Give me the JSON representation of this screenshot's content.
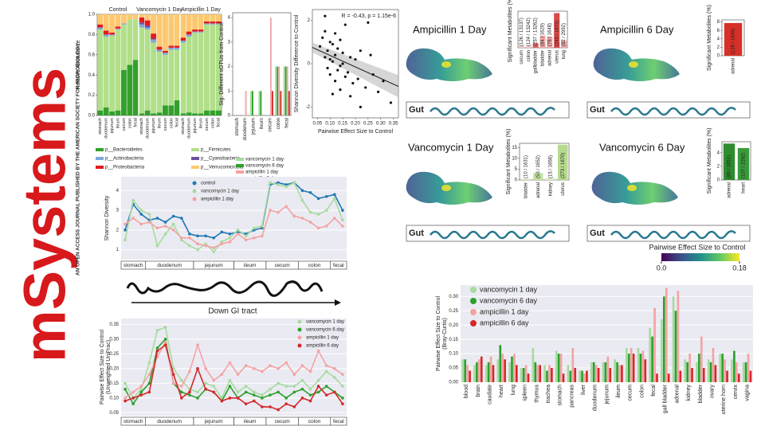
{
  "logo": {
    "title": "mSystems",
    "subtitle": "AN OPEN ACCESS JOURNAL PUBLISHED BY THE AMERICAN SOCIETY FOR MICROBIOLOGY"
  },
  "gi_label": "Down GI tract",
  "colorbar": {
    "label": "Pairwise Effect Size to Control",
    "lim": [
      0,
      0.18
    ],
    "ticks": [
      {
        "value": 0,
        "label": "0.0"
      },
      0.18
    ],
    "colors": [
      "#440154",
      "#3b528b",
      "#21918c",
      "#5ec962",
      "#fde725"
    ]
  },
  "chart_data": [
    {
      "type": "stacked_bar",
      "ylabel": "Relative Abundance",
      "groups": [
        "Control",
        "Vancomycin 1 Day",
        "Ampicillin 1 Day"
      ],
      "categories": [
        "stomach",
        "duodenum",
        "jejunum",
        "ileum",
        "cecum",
        "colon",
        "fecal",
        "stomach",
        "duodenum",
        "jejunum",
        "ileum",
        "cecum",
        "colon",
        "fecal",
        "stomach",
        "duodenum",
        "jejunum",
        "ileum",
        "cecum",
        "colon",
        "fecal"
      ],
      "ylim": [
        0,
        1
      ],
      "yticks": [
        {
          "value": 0,
          "label": "0.0"
        },
        0.2,
        0.4,
        0.6,
        0.8,
        {
          "value": 1,
          "label": "1.0"
        }
      ],
      "series": [
        {
          "name": "p__Bacteroidetes",
          "color": "#33a02c",
          "values": [
            0.05,
            0.08,
            0.04,
            0.05,
            0.45,
            0.5,
            0.55,
            0.02,
            0.05,
            0.02,
            0.03,
            0.1,
            0.1,
            0.15,
            0.02,
            0.03,
            0.02,
            0.02,
            0.05,
            0.05,
            0.05
          ]
        },
        {
          "name": "p__Firmicutes",
          "color": "#b2df8a",
          "values": [
            0.8,
            0.7,
            0.75,
            0.8,
            0.45,
            0.45,
            0.4,
            0.85,
            0.8,
            0.7,
            0.6,
            0.5,
            0.55,
            0.5,
            0.7,
            0.75,
            0.8,
            0.8,
            0.85,
            0.85,
            0.85
          ]
        },
        {
          "name": "p__Actinobacteria",
          "color": "#7fa8d8",
          "values": [
            0.02,
            0.02,
            0.01,
            0.01,
            0.01,
            0,
            0,
            0.03,
            0.02,
            0.03,
            0.02,
            0.02,
            0.02,
            0.02,
            0.02,
            0.02,
            0.01,
            0.01,
            0.01,
            0.01,
            0.01
          ]
        },
        {
          "name": "p__Cyanobacteria",
          "color": "#6a51a3",
          "values": [
            0,
            0,
            0,
            0,
            0,
            0,
            0,
            0.02,
            0.02,
            0.01,
            0,
            0,
            0,
            0,
            0,
            0,
            0,
            0,
            0,
            0,
            0
          ]
        },
        {
          "name": "p__Proteobacteria",
          "color": "#e31a1c",
          "values": [
            0.03,
            0.04,
            0.02,
            0.02,
            0,
            0,
            0,
            0.05,
            0.05,
            0.05,
            0.03,
            0.02,
            0.02,
            0.02,
            0.03,
            0.03,
            0.02,
            0.02,
            0.02,
            0.02,
            0.02
          ]
        },
        {
          "name": "p__Verrucomicrobia",
          "color": "#fdc86f",
          "values": [
            0.1,
            0.16,
            0.18,
            0.12,
            0.09,
            0.05,
            0.05,
            0.03,
            0.06,
            0.19,
            0.32,
            0.36,
            0.31,
            0.31,
            0.23,
            0.17,
            0.15,
            0.15,
            0.07,
            0.07,
            0.07
          ]
        }
      ]
    },
    {
      "type": "bar",
      "ylabel": "Sig. Different sOTUs from Control",
      "categories": [
        "stomach",
        "duodenum",
        "jejunum",
        "ileum",
        "cecum",
        "colon",
        "fecal"
      ],
      "ylim": [
        0,
        4.2
      ],
      "yticks": [
        0,
        1,
        2,
        3,
        4
      ],
      "series": [
        {
          "name": "vancomycin 1 day",
          "color": "#a6dba0",
          "values": [
            0,
            0,
            1,
            1,
            0,
            2,
            2
          ]
        },
        {
          "name": "vancomycin 6 day",
          "color": "#2ca02c",
          "values": [
            0,
            0,
            1,
            1,
            0,
            2,
            2
          ]
        },
        {
          "name": "ampicillin 1 day",
          "color": "#f4a3a3",
          "values": [
            0,
            1,
            0,
            0,
            4,
            2,
            2
          ]
        },
        {
          "name": "ampicillin 6 day",
          "color": "#d62728",
          "values": [
            0,
            0,
            0,
            0,
            1,
            1,
            1
          ]
        }
      ]
    },
    {
      "type": "scatter",
      "xlabel": "Pairwise Effect Size to Control",
      "ylabel": "Shannon Diversity Difference to Control",
      "annotation": "R = -0.43, p = 1.15e-6",
      "xlim": [
        0.03,
        0.37
      ],
      "xticks": [
        0.05,
        {
          "value": 0.1,
          "label": "0.10"
        },
        0.15,
        {
          "value": 0.2,
          "label": "0.20"
        },
        0.25,
        {
          "value": 0.3,
          "label": "0.30"
        },
        0.35
      ],
      "ylim": [
        -2.5,
        2.5
      ],
      "yticks": [
        -2,
        0,
        2
      ],
      "color": "#111111",
      "fit_line": {
        "x": [
          0.03,
          0.37
        ],
        "y": [
          0.75,
          -1.05
        ]
      },
      "x": [
        0.06,
        0.07,
        0.08,
        0.08,
        0.09,
        0.09,
        0.1,
        0.1,
        0.1,
        0.11,
        0.11,
        0.12,
        0.12,
        0.12,
        0.13,
        0.13,
        0.14,
        0.14,
        0.15,
        0.15,
        0.16,
        0.16,
        0.17,
        0.18,
        0.18,
        0.19,
        0.2,
        0.21,
        0.22,
        0.24,
        0.25,
        0.27,
        0.29,
        0.31,
        0.34,
        0.08,
        0.11,
        0.14,
        0.22,
        0.26
      ],
      "y": [
        0.8,
        1.2,
        0.3,
        1.5,
        0.6,
        -0.2,
        1.0,
        0.2,
        -0.5,
        0.9,
        0.1,
        1.4,
        -0.8,
        0.4,
        0.7,
        -0.3,
        1.1,
        -1.2,
        0.0,
        0.5,
        -0.6,
        1.8,
        -0.4,
        0.3,
        -1.5,
        -0.9,
        0.2,
        -0.7,
        0.6,
        -1.1,
        1.9,
        -0.5,
        -1.3,
        -0.8,
        -1.8,
        2.2,
        -1.4,
        -0.1,
        -2.0,
        0.4
      ]
    },
    {
      "type": "bar",
      "title": "Ampicillin 1 Day",
      "gut_label": "Gut",
      "ylabel": "Significant Metabolites (%)",
      "categories": [
        "cecum",
        "colon",
        "gallbladder",
        "bladder",
        "adrenal",
        "uterus",
        "lung"
      ],
      "values": [
        0.96,
        0.94,
        1.94,
        5.16,
        4.73,
        14.65,
        3.07
      ],
      "bar_labels": [
        "(126 / 13137)",
        "(124 / 13242)",
        "(257 / 13262)",
        "(84 / 1629)",
        "(78 / 1648)",
        "(245 / 1672)",
        "(92 / 2992)"
      ],
      "colors": [
        "#f6c9c9",
        "#f6c9c9",
        "#e06666",
        "#f2a7a7",
        "#f2a7a7",
        "#d94a4a",
        "#f2a7a7"
      ],
      "ylim": [
        0,
        15.5
      ],
      "yticks": []
    },
    {
      "type": "bar",
      "title": "Ampicillin 6 Day",
      "gut_label": "Gut",
      "ylabel": "Significant Metabolites (%)",
      "categories": [
        "adrenal"
      ],
      "values": [
        7.76
      ],
      "bar_labels": [
        "(128 / 1649)"
      ],
      "colors": [
        "#d73027"
      ],
      "ylim": [
        0,
        8.5
      ],
      "yticks": [
        0,
        2,
        4,
        6,
        8
      ]
    },
    {
      "type": "bar",
      "title": "Vancomycin 1 Day",
      "gut_label": "Gut",
      "ylabel": "Significant Metabolites (%)",
      "categories": [
        "bladder",
        "adrenal",
        "kidney",
        "uterus"
      ],
      "values": [
        0.61,
        3.21,
        0.91,
        16.35
      ],
      "bar_labels": [
        "(10 / 1631)",
        "(53 / 1652)",
        "(15 / 1656)",
        "(273 / 1670)"
      ],
      "colors": [
        "#d9efc4",
        "#c2e3a1",
        "#d9efc4",
        "#b5dc8c"
      ],
      "ylim": [
        0,
        17
      ],
      "yticks": [
        0,
        5,
        10,
        15
      ]
    },
    {
      "type": "bar",
      "title": "Vancomycin 6 Day",
      "gut_label": "Gut",
      "ylabel": "Significant Metabolites (%)",
      "categories": [
        "adrenal",
        "heart"
      ],
      "values": [
        5.33,
        4.67
      ],
      "bar_labels": [
        "(88 / 1651)",
        "(107 / 2292)"
      ],
      "colors": [
        "#2e8b2e",
        "#3a9a3a"
      ],
      "ylim": [
        0,
        5.6
      ],
      "yticks": [
        0,
        2,
        4
      ]
    },
    {
      "type": "line",
      "ylabel": "Shannon Diversity",
      "grid": true,
      "background": "#eaeaf2",
      "categories": [
        "stomach",
        null,
        null,
        "duodenum",
        null,
        null,
        null,
        null,
        null,
        "jejunum",
        null,
        null,
        null,
        null,
        "ileum",
        null,
        null,
        null,
        "cecum",
        null,
        null,
        null,
        "colon",
        null,
        null,
        null,
        "fecal",
        null
      ],
      "ylim": [
        0.5,
        4.7
      ],
      "yticks": [
        1,
        2,
        3,
        4
      ],
      "series": [
        {
          "name": "control",
          "color": "#1f77b4",
          "values": [
            2.0,
            3.3,
            2.8,
            2.5,
            2.6,
            2.4,
            2.7,
            2.6,
            1.8,
            1.7,
            1.7,
            1.6,
            1.9,
            1.8,
            1.9,
            1.8,
            2.0,
            2.1,
            4.3,
            4.4,
            4.3,
            4.4,
            4.0,
            3.9,
            3.6,
            3.7,
            3.8,
            3.0
          ]
        },
        {
          "name": "vancomycin 1 day",
          "color": "#a6dba0",
          "values": [
            1.5,
            3.5,
            3.0,
            2.8,
            1.2,
            1.8,
            2.3,
            1.5,
            1.2,
            1.0,
            1.3,
            0.9,
            1.4,
            1.6,
            2.0,
            1.7,
            2.1,
            2.2,
            4.4,
            4.3,
            4.2,
            4.4,
            3.5,
            2.9,
            2.8,
            3.0,
            3.6,
            2.5
          ]
        },
        {
          "name": "ampicillin 1 day",
          "color": "#f4a3a3",
          "values": [
            2.3,
            2.6,
            2.3,
            2.4,
            2.1,
            2.2,
            2.0,
            1.6,
            1.6,
            1.3,
            1.2,
            1.1,
            1.3,
            1.4,
            1.8,
            1.5,
            1.6,
            1.7,
            3.0,
            2.9,
            3.2,
            2.7,
            2.6,
            2.4,
            2.1,
            2.2,
            2.6,
            2.2
          ]
        }
      ]
    },
    {
      "type": "line",
      "ylabel": "Pairwise Effect Size to Control",
      "ylabel2": "(Unweighted UniFrac)",
      "grid": true,
      "background": "#eaeaf2",
      "categories": [
        "stomach",
        null,
        null,
        "duodenum",
        null,
        null,
        null,
        null,
        null,
        "jejunum",
        null,
        null,
        null,
        null,
        "ileum",
        null,
        null,
        null,
        "cecum",
        null,
        null,
        null,
        "colon",
        null,
        null,
        null,
        "fecal",
        null
      ],
      "ylim": [
        0.04,
        0.37
      ],
      "yticks": [
        0.05,
        {
          "value": 0.1,
          "label": "0.10"
        },
        0.15,
        {
          "value": 0.2,
          "label": "0.20"
        },
        0.25,
        {
          "value": 0.3,
          "label": "0.30"
        },
        0.35
      ],
      "series": [
        {
          "name": "vancomycin 1 day",
          "color": "#a6dba0",
          "values": [
            0.15,
            0.1,
            0.13,
            0.22,
            0.33,
            0.34,
            0.2,
            0.16,
            0.13,
            0.12,
            0.15,
            0.14,
            0.1,
            0.16,
            0.12,
            0.14,
            0.12,
            0.11,
            0.13,
            0.15,
            0.14,
            0.14,
            0.16,
            0.13,
            0.16,
            0.19,
            0.17,
            0.14
          ]
        },
        {
          "name": "vancomycin 6 day",
          "color": "#2ca02c",
          "values": [
            0.13,
            0.08,
            0.12,
            0.15,
            0.27,
            0.3,
            0.15,
            0.12,
            0.11,
            0.1,
            0.13,
            0.12,
            0.09,
            0.14,
            0.1,
            0.12,
            0.11,
            0.1,
            0.11,
            0.12,
            0.1,
            0.12,
            0.13,
            0.11,
            0.12,
            0.14,
            0.12,
            0.1
          ]
        },
        {
          "name": "ampicillin 1 day",
          "color": "#f4a3a3",
          "values": [
            0.1,
            0.12,
            0.14,
            0.18,
            0.24,
            0.29,
            0.15,
            0.14,
            0.19,
            0.28,
            0.2,
            0.16,
            0.18,
            0.22,
            0.18,
            0.21,
            0.2,
            0.19,
            0.21,
            0.2,
            0.22,
            0.18,
            0.21,
            0.19,
            0.26,
            0.21,
            0.2,
            0.18
          ]
        },
        {
          "name": "ampicillin 6 day",
          "color": "#d62728",
          "values": [
            0.09,
            0.1,
            0.11,
            0.12,
            0.26,
            0.28,
            0.18,
            0.1,
            0.12,
            0.2,
            0.13,
            0.12,
            0.09,
            0.1,
            0.1,
            0.08,
            0.09,
            0.07,
            0.07,
            0.06,
            0.08,
            0.07,
            0.1,
            0.09,
            0.14,
            0.11,
            0.12,
            0.08
          ]
        }
      ]
    },
    {
      "type": "bar",
      "ylabel": "Pairwise Effect Size to Control",
      "ylabel2": "(Bray-Curtis)",
      "grid": true,
      "background": "#eaeaf2",
      "legend_marker": "circle",
      "categories": [
        "blood",
        "brain",
        "caudate",
        "heart",
        "lung",
        "spleen",
        "thymus",
        "trachea",
        "stomach",
        "pancreas",
        "liver",
        "duodenum",
        "jejunum",
        "ileum",
        "cecum",
        "colon",
        "fecal",
        "gall bladder",
        "adrenal",
        "kidney",
        "bladder",
        "ovary",
        "uterine horn",
        "cervix",
        "vagina"
      ],
      "ylim": [
        0,
        0.34
      ],
      "yticks": [
        {
          "value": 0,
          "label": "0.00"
        },
        0.05,
        {
          "value": 0.1,
          "label": "0.10"
        },
        0.15,
        {
          "value": 0.2,
          "label": "0.20"
        },
        0.25,
        {
          "value": 0.3,
          "label": "0.30"
        }
      ],
      "series": [
        {
          "name": "vancomycin 1 day",
          "color": "#a6dba0",
          "values": [
            0.08,
            0.06,
            0.06,
            0.08,
            0.07,
            0.05,
            0.12,
            0.06,
            0.11,
            0.06,
            0.04,
            0.07,
            0.07,
            0.08,
            0.12,
            0.12,
            0.19,
            0.22,
            0.3,
            0.08,
            0.07,
            0.08,
            0.1,
            0.08,
            0.07
          ]
        },
        {
          "name": "vancomycin 6 day",
          "color": "#2ca02c",
          "values": [
            0.08,
            0.07,
            0.07,
            0.13,
            0.09,
            0.05,
            0.07,
            0.04,
            0.1,
            0.04,
            0.04,
            0.07,
            0.07,
            0.07,
            0.1,
            0.1,
            0.16,
            0.3,
            0.25,
            0.07,
            0.1,
            0.07,
            0.1,
            0.11,
            0.07
          ]
        },
        {
          "name": "ampicillin 1 day",
          "color": "#f4a3a3",
          "values": [
            0.06,
            0.08,
            0.09,
            0.1,
            0.1,
            0.06,
            0.06,
            0.06,
            0.1,
            0.12,
            0.03,
            0.06,
            0.09,
            0.06,
            0.12,
            0.11,
            0.26,
            0.33,
            0.32,
            0.1,
            0.16,
            0.12,
            0.08,
            0.07,
            0.1
          ]
        },
        {
          "name": "ampicillin 6 day",
          "color": "#d62728",
          "values": [
            0.04,
            0.09,
            0.06,
            0.08,
            0.06,
            0.03,
            0.06,
            0.05,
            0.03,
            0.05,
            0.04,
            0.05,
            0.05,
            0.06,
            0.1,
            0.08,
            0.03,
            0.03,
            0.04,
            0.05,
            0.05,
            0.06,
            0.04,
            0.03,
            0.04
          ]
        }
      ]
    }
  ]
}
